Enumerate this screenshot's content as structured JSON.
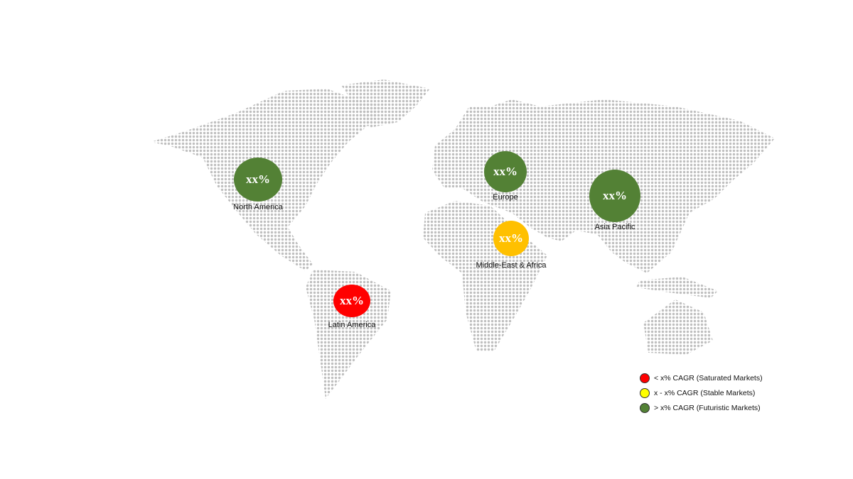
{
  "regions": [
    {
      "name": "North America",
      "value": "xx%",
      "color": "#538135"
    },
    {
      "name": "Europe",
      "value": "xx%",
      "color": "#538135"
    },
    {
      "name": "Asia Pacific",
      "value": "xx%",
      "color": "#538135"
    },
    {
      "name": "Middle-East & Africa",
      "value": "xx%",
      "color": "#FFC000"
    },
    {
      "name": "Latin America",
      "value": "xx%",
      "color": "#FF0000"
    }
  ],
  "legend": [
    {
      "label": "< x% CAGR (Saturated Markets)",
      "color": "#FF0000"
    },
    {
      "label": "x - x% CAGR (Stable Markets)",
      "color": "#FFFF00"
    },
    {
      "label": "> x% CAGR (Futuristic Markets)",
      "color": "#538135"
    }
  ],
  "map_dot_color": "#BFBFBF"
}
